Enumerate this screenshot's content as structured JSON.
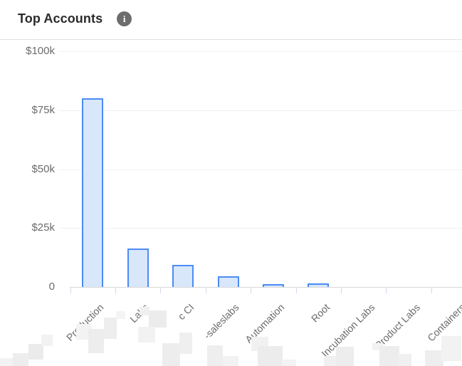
{
  "header": {
    "title": "Top Accounts",
    "info_glyph": "i"
  },
  "chart_data": {
    "type": "bar",
    "title": "Top Accounts",
    "categories": [
      "Production",
      "Labs",
      "c CI",
      "-saleslabs",
      "Automation",
      "Root",
      "Incubation Labs",
      "Product Labs",
      "Containers"
    ],
    "values": [
      80000,
      16300,
      9500,
      4400,
      1300,
      1400,
      0,
      0,
      0
    ],
    "xlabel": "",
    "ylabel": "",
    "ylim": [
      0,
      100000
    ],
    "y_ticks": [
      {
        "label": "$100k",
        "value": 100000
      },
      {
        "label": "$75k",
        "value": 75000
      },
      {
        "label": "$50k",
        "value": 50000
      },
      {
        "label": "$25k",
        "value": 25000
      },
      {
        "label": "0",
        "value": 0
      }
    ],
    "grid": true,
    "legend": "none",
    "x_label_rotation_deg": -45,
    "bar_fill": "#d9e7fb",
    "bar_stroke": "#4b8bf4"
  },
  "redaction_mosaic": {
    "cells": [
      [
        0,
        503,
        18,
        11,
        "#f2f2f2"
      ],
      [
        18,
        496,
        22,
        18,
        "#ededed"
      ],
      [
        40,
        483,
        21,
        22,
        "#ebebeb"
      ],
      [
        58,
        470,
        16,
        16,
        "#f2f2f2"
      ],
      [
        107,
        455,
        22,
        22,
        "#f3f3f3"
      ],
      [
        124,
        462,
        22,
        34,
        "#ededed"
      ],
      [
        146,
        446,
        18,
        30,
        "#eeeeee"
      ],
      [
        163,
        437,
        13,
        11,
        "#f4f4f4"
      ],
      [
        196,
        431,
        14,
        12,
        "#f0f0f0"
      ],
      [
        209,
        436,
        25,
        24,
        "#ececec"
      ],
      [
        194,
        459,
        24,
        22,
        "#f2f2f2"
      ],
      [
        228,
        482,
        25,
        33,
        "#ededed"
      ],
      [
        252,
        467,
        18,
        30,
        "#efefef"
      ],
      [
        291,
        485,
        22,
        29,
        "#eeeeee"
      ],
      [
        313,
        500,
        22,
        14,
        "#f2f2f2"
      ],
      [
        353,
        473,
        24,
        20,
        "#f1f1f1"
      ],
      [
        362,
        486,
        35,
        28,
        "#ececec"
      ],
      [
        396,
        505,
        20,
        9,
        "#f3f3f3"
      ],
      [
        455,
        500,
        22,
        14,
        "#f0f0f0"
      ],
      [
        472,
        487,
        25,
        27,
        "#ededed"
      ],
      [
        523,
        482,
        15,
        10,
        "#f2f2f2"
      ],
      [
        533,
        486,
        28,
        28,
        "#ededed"
      ],
      [
        560,
        497,
        18,
        17,
        "#f0f0f0"
      ],
      [
        597,
        492,
        26,
        22,
        "#eeeeee"
      ],
      [
        620,
        472,
        28,
        35,
        "#f2f2f2"
      ]
    ]
  }
}
